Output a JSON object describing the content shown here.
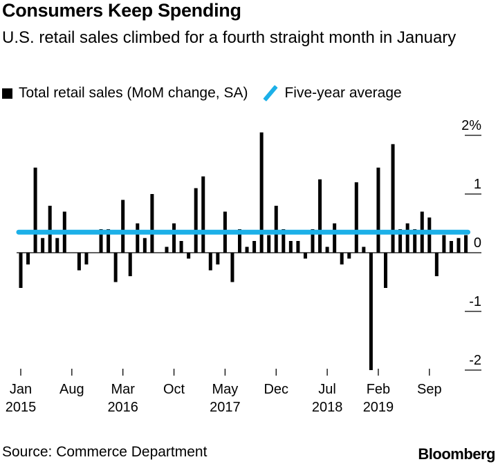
{
  "header": {
    "title": "Consumers Keep Spending",
    "subtitle": "U.S. retail sales climbed for a fourth straight month in January"
  },
  "legend": {
    "bar_label": "Total retail sales (MoM change, SA)",
    "line_label": "Five-year average"
  },
  "footer": {
    "source": "Source: Commerce Department",
    "logo": "Bloomberg"
  },
  "colors": {
    "bars": "#000000",
    "average": "#1cb0e8"
  },
  "chart_data": {
    "type": "bar",
    "ylim": [
      -2,
      2
    ],
    "y_ticks": [
      {
        "value": 2,
        "label": "2%"
      },
      {
        "value": 1,
        "label": "1"
      },
      {
        "value": 0,
        "label": "0"
      },
      {
        "value": -1,
        "label": "-1"
      },
      {
        "value": -2,
        "label": "-2"
      }
    ],
    "x_ticks": [
      {
        "index": 0,
        "month": "Jan",
        "year": "2015"
      },
      {
        "index": 7,
        "month": "Aug",
        "year": ""
      },
      {
        "index": 14,
        "month": "Mar",
        "year": "2016"
      },
      {
        "index": 21,
        "month": "Oct",
        "year": ""
      },
      {
        "index": 28,
        "month": "May",
        "year": "2017"
      },
      {
        "index": 35,
        "month": "Dec",
        "year": ""
      },
      {
        "index": 42,
        "month": "Jul",
        "year": "2018"
      },
      {
        "index": 49,
        "month": "Feb",
        "year": "2019"
      },
      {
        "index": 56,
        "month": "Sep",
        "year": ""
      }
    ],
    "average": 0.35,
    "series": [
      {
        "values": [
          -0.6,
          -0.2,
          1.45,
          0.25,
          0.8,
          0.25,
          0.7,
          0.0,
          -0.3,
          -0.2,
          0.0,
          0.4,
          0.4,
          -0.5,
          0.9,
          -0.4,
          0.5,
          0.25,
          1.0,
          0.0,
          0.1,
          0.5,
          0.2,
          -0.1,
          1.1,
          1.3,
          -0.3,
          -0.2,
          0.7,
          -0.5,
          0.4,
          0.1,
          0.2,
          2.05,
          0.3,
          0.8,
          0.4,
          0.2,
          0.2,
          -0.1,
          0.4,
          1.25,
          0.1,
          0.5,
          -0.2,
          -0.1,
          1.2,
          0.1,
          -2.0,
          1.45,
          -0.6,
          1.85,
          0.4,
          0.5,
          0.4,
          0.7,
          0.6,
          -0.4,
          0.3,
          0.2,
          0.25,
          0.3
        ]
      }
    ]
  }
}
